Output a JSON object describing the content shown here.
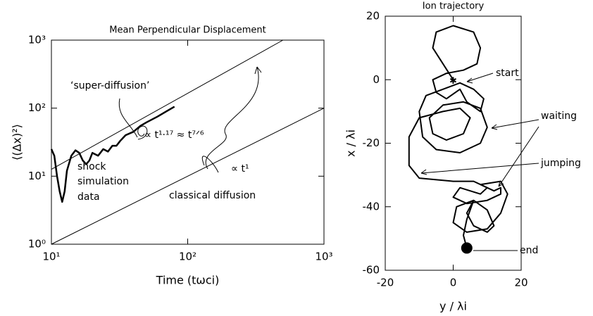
{
  "chart_data": [
    {
      "type": "line",
      "title": "Mean Perpendicular Displacement",
      "xlabel": "Time (tωci)",
      "ylabel": "⟨(Δx)²⟩",
      "log_x": true,
      "log_y": true,
      "xlim": [
        10,
        1000
      ],
      "ylim": [
        1,
        1000
      ],
      "xticks": [
        {
          "value": 10,
          "label": "10¹"
        },
        {
          "value": 100,
          "label": "10²"
        },
        {
          "value": 1000,
          "label": "10³"
        }
      ],
      "yticks": [
        {
          "value": 1,
          "label": "10⁰"
        },
        {
          "value": 10,
          "label": "10¹"
        },
        {
          "value": 100,
          "label": "10²"
        },
        {
          "value": 1000,
          "label": "10³"
        }
      ],
      "series": [
        {
          "name": "shock simulation data",
          "color": "#000000",
          "x": [
            10,
            10.5,
            11,
            11.5,
            12,
            12.5,
            13,
            14,
            15,
            16,
            17,
            18,
            19,
            20,
            22,
            24,
            26,
            28,
            30,
            32,
            35,
            40,
            45,
            50,
            60,
            70,
            80
          ],
          "values": [
            25,
            20,
            10,
            6,
            4.2,
            6,
            12,
            20,
            24,
            22,
            17,
            15,
            17,
            22,
            20,
            25,
            23,
            28,
            28,
            33,
            40,
            45,
            55,
            62,
            75,
            90,
            105
          ]
        },
        {
          "name": "super-diffusion fit",
          "color": "#000000",
          "x": [
            10,
            500
          ],
          "values": [
            12.6,
            1000
          ]
        },
        {
          "name": "classical diffusion fit",
          "color": "#000000",
          "x": [
            10,
            1000
          ],
          "values": [
            1,
            100
          ]
        }
      ],
      "annotations": [
        "‘super-diffusion’",
        "∝ t¹·¹⁷ ≈ t⁷ᐟ⁶",
        "shock",
        "simulation",
        "data",
        "∝ t¹",
        "classical diffusion"
      ]
    },
    {
      "type": "trajectory",
      "title": "Ion trajectory",
      "xlabel": "y / λi",
      "ylabel": "x / λi",
      "xlim": [
        -20,
        20
      ],
      "ylim": [
        -60,
        20
      ],
      "xticks": [
        -20,
        0,
        20
      ],
      "yticks": [
        -60,
        -40,
        -20,
        0,
        20
      ],
      "color": "#000000",
      "x": [
        0,
        -3,
        -6,
        -5,
        0,
        6,
        8,
        7,
        3,
        -2,
        -6,
        -5,
        -2,
        2,
        4,
        8,
        9,
        6,
        2,
        -3,
        -8,
        -10,
        -9,
        -5,
        2,
        8,
        10,
        8,
        3,
        -3,
        -7,
        -6,
        -2,
        3,
        5,
        2,
        -3,
        -10,
        -13,
        -13,
        -10,
        0,
        6,
        10,
        8,
        2,
        0,
        4,
        10,
        14,
        14,
        12,
        8,
        14,
        16,
        14,
        10,
        4,
        0,
        1,
        6,
        10,
        12,
        10,
        6,
        4,
        6,
        4,
        3,
        4
      ],
      "values": [
        0,
        5,
        10,
        15,
        17,
        15,
        10,
        5,
        3,
        2,
        0,
        -4,
        -6,
        -3,
        -7,
        -10,
        -6,
        -3,
        -1,
        -3,
        -5,
        -10,
        -18,
        -22,
        -23,
        -20,
        -15,
        -9,
        -7,
        -8,
        -12,
        -17,
        -19,
        -17,
        -12,
        -9,
        -10,
        -12,
        -18,
        -27,
        -31,
        -32,
        -32,
        -34,
        -36,
        -34,
        -37,
        -39,
        -38,
        -36,
        -34,
        -35,
        -33,
        -32,
        -36,
        -42,
        -47,
        -48,
        -45,
        -40,
        -38,
        -41,
        -46,
        -48,
        -46,
        -42,
        -38,
        -44,
        -49,
        -53
      ],
      "annotations": [
        "start",
        "waiting",
        "jumping",
        "end"
      ]
    }
  ]
}
